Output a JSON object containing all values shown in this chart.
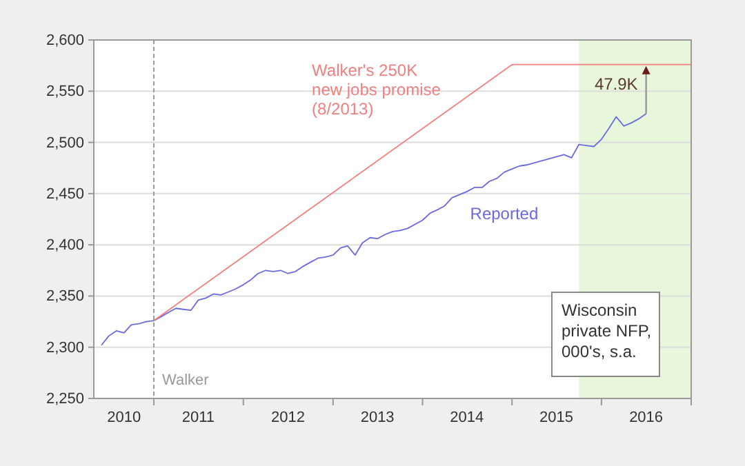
{
  "chart_data": {
    "type": "line",
    "xlim": [
      "2010-05",
      "2017-01"
    ],
    "xticks": [
      {
        "value": "2011-01",
        "label": null
      },
      {
        "value": "2012-01",
        "label": null
      },
      {
        "value": "2013-01",
        "label": null
      },
      {
        "value": "2014-01",
        "label": null
      },
      {
        "value": "2015-01",
        "label": null
      },
      {
        "value": "2016-01",
        "label": null
      },
      {
        "value": "2017-01",
        "label": null
      },
      {
        "value": "2010-09",
        "label": "2010"
      },
      {
        "value": "2011-07",
        "label": "2011"
      },
      {
        "value": "2012-07",
        "label": "2012"
      },
      {
        "value": "2013-07",
        "label": "2013"
      },
      {
        "value": "2014-07",
        "label": "2014"
      },
      {
        "value": "2015-07",
        "label": "2015"
      },
      {
        "value": "2016-07",
        "label": "2016"
      }
    ],
    "ylim": [
      2250,
      2600
    ],
    "yticks": [
      {
        "value": 2250,
        "label": "2,250"
      },
      {
        "value": 2300,
        "label": "2,300"
      },
      {
        "value": 2350,
        "label": "2,350"
      },
      {
        "value": 2400,
        "label": "2,400"
      },
      {
        "value": 2450,
        "label": "2,450"
      },
      {
        "value": 2500,
        "label": "2,500"
      },
      {
        "value": 2550,
        "label": "2,550"
      },
      {
        "value": 2600,
        "label": "2,600"
      }
    ],
    "grid": "y",
    "series": [
      {
        "name": "Reported",
        "color": "#6a6ae0",
        "x": [
          "2010-06",
          "2010-07",
          "2010-08",
          "2010-09",
          "2010-10",
          "2010-11",
          "2010-12",
          "2011-01",
          "2011-02",
          "2011-03",
          "2011-04",
          "2011-05",
          "2011-06",
          "2011-07",
          "2011-08",
          "2011-09",
          "2011-10",
          "2011-11",
          "2011-12",
          "2012-01",
          "2012-02",
          "2012-03",
          "2012-04",
          "2012-05",
          "2012-06",
          "2012-07",
          "2012-08",
          "2012-09",
          "2012-10",
          "2012-11",
          "2012-12",
          "2013-01",
          "2013-02",
          "2013-03",
          "2013-04",
          "2013-05",
          "2013-06",
          "2013-07",
          "2013-08",
          "2013-09",
          "2013-10",
          "2013-11",
          "2013-12",
          "2014-01",
          "2014-02",
          "2014-03",
          "2014-04",
          "2014-05",
          "2014-06",
          "2014-07",
          "2014-08",
          "2014-09",
          "2014-10",
          "2014-11",
          "2014-12",
          "2015-01",
          "2015-02",
          "2015-03",
          "2015-04",
          "2015-05",
          "2015-06",
          "2015-07",
          "2015-08",
          "2015-09",
          "2015-10",
          "2015-11",
          "2015-12",
          "2016-01",
          "2016-02",
          "2016-03",
          "2016-04",
          "2016-05",
          "2016-06",
          "2016-07"
        ],
        "values": [
          2302,
          2311,
          2316,
          2314,
          2322,
          2323,
          2325,
          2326,
          2330,
          2334,
          2338,
          2337,
          2336,
          2346,
          2348,
          2352,
          2351,
          2354,
          2357,
          2361,
          2366,
          2372,
          2375,
          2374,
          2375,
          2372,
          2374,
          2379,
          2383,
          2387,
          2388,
          2390,
          2397,
          2399,
          2390,
          2402,
          2407,
          2406,
          2410,
          2413,
          2414,
          2416,
          2420,
          2424,
          2431,
          2434,
          2438,
          2446,
          2449,
          2452,
          2456,
          2456,
          2462,
          2465,
          2471,
          2474,
          2477,
          2478,
          2480,
          2482,
          2484,
          2486,
          2488,
          2485,
          2498,
          2497,
          2496,
          2503,
          2514,
          2525,
          2516,
          2519,
          2523,
          2528
        ]
      },
      {
        "name": "Walker's 250K\nnew jobs promise\n(8/2013)",
        "color": "#f08080",
        "x": [
          "2011-01",
          "2015-01",
          "2017-01"
        ],
        "values": [
          2326,
          2576,
          2576
        ]
      }
    ],
    "ref_lines": [
      {
        "axis": "x",
        "value": "2011-01",
        "label": "Walker",
        "color": "#999999",
        "line_style": "dashed"
      }
    ],
    "bands": [
      {
        "axis": "x",
        "from": "2015-10",
        "to": "2017-01",
        "color": "#e8f6dc"
      }
    ],
    "annotations": [
      {
        "text": "47.9K",
        "x": "2016-07",
        "y": 2576
      },
      "Wisconsin\nprivate NFP,\n000's, s.a."
    ]
  }
}
